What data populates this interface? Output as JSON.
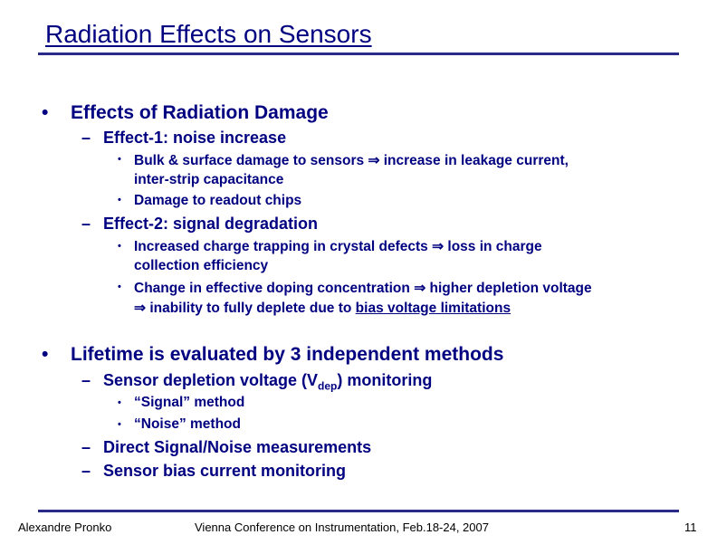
{
  "title": "Radiation Effects on Sensors",
  "symbols": {
    "bullet": "•",
    "dash": "–",
    "implies": "⇒"
  },
  "section1": {
    "heading": "Effects of Radiation Damage",
    "effect1": {
      "label": "Effect-1: noise increase",
      "item1_line1": "Bulk & surface damage to sensors",
      "item1_line1b": "increase in leakage current,",
      "item1_line2": "inter-strip capacitance",
      "item2": "Damage to readout chips"
    },
    "effect2": {
      "label": "Effect-2: signal degradation",
      "item1_line1": "Increased charge trapping in crystal defects",
      "item1_line1b": "loss in charge",
      "item1_line2": "collection efficiency",
      "item2_line1": "Change in effective doping concentration",
      "item2_line1b": "higher depletion voltage",
      "item2_line2a": "inability to fully deplete due to",
      "item2_line2b": "bias voltage limitations"
    }
  },
  "section2": {
    "heading": "Lifetime is evaluated by 3 independent methods",
    "method1_prefix": "Sensor depletion voltage (V",
    "method1_sub": "dep",
    "method1_suffix": ") monitoring",
    "sub1": "“Signal” method",
    "sub2": "“Noise” method",
    "method2": "Direct Signal/Noise measurements",
    "method3": "Sensor bias current monitoring"
  },
  "footer": {
    "author": "Alexandre Pronko",
    "conference": "Vienna Conference on Instrumentation, Feb.18-24, 2007",
    "page": "11"
  }
}
